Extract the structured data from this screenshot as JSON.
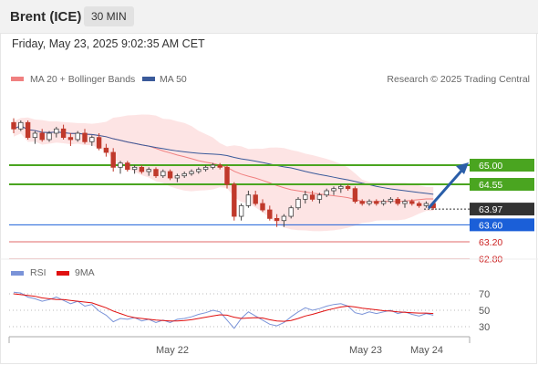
{
  "header": {
    "instrument": "Brent (ICE)",
    "timeframe": "30 MIN",
    "datetime": "Friday, May 23, 2025 9:02:35 AM CET"
  },
  "legend": {
    "ma20": "MA 20 + Bollinger Bands",
    "ma50": "MA 50",
    "credit": "Research © 2025 Trading Central",
    "rsi": "RSI",
    "rsi_ma": "9MA"
  },
  "colors": {
    "ma20": "#f08080",
    "ma50": "#3a5a9a",
    "bollinger_fill": "#fde1e1",
    "resistance": "#4aa520",
    "support": "#1b5fd8",
    "current": "#333333",
    "lower_level": "#e06a6a",
    "arrow": "#2a5ea8",
    "rsi": "#7a93d8",
    "rsi_ma": "#e01010",
    "candle_up": "#ffffff",
    "candle_down": "#c0392b"
  },
  "chart_data": [
    {
      "type": "candlestick",
      "x_ticks": [
        "May 22",
        "May 23",
        "May 24"
      ],
      "y_range": [
        62.5,
        66.5
      ],
      "levels": [
        {
          "value": 65.0,
          "label": "65.00",
          "kind": "resistance"
        },
        {
          "value": 64.55,
          "label": "64.55",
          "kind": "resistance"
        },
        {
          "value": 63.97,
          "label": "63.97",
          "kind": "current"
        },
        {
          "value": 63.6,
          "label": "63.60",
          "kind": "support"
        },
        {
          "value": 63.2,
          "label": "63.20",
          "kind": "lower"
        },
        {
          "value": 62.8,
          "label": "62.80",
          "kind": "lower"
        }
      ],
      "ohlc": [
        [
          66.0,
          66.1,
          65.75,
          65.85
        ],
        [
          65.85,
          66.05,
          65.8,
          66.0
        ],
        [
          66.0,
          66.05,
          65.6,
          65.65
        ],
        [
          65.65,
          65.8,
          65.5,
          65.75
        ],
        [
          65.75,
          65.85,
          65.55,
          65.6
        ],
        [
          65.6,
          65.8,
          65.55,
          65.75
        ],
        [
          65.75,
          65.9,
          65.65,
          65.85
        ],
        [
          65.85,
          65.95,
          65.6,
          65.65
        ],
        [
          65.65,
          65.75,
          65.45,
          65.6
        ],
        [
          65.6,
          65.8,
          65.55,
          65.75
        ],
        [
          65.75,
          65.85,
          65.5,
          65.55
        ],
        [
          65.55,
          65.7,
          65.45,
          65.65
        ],
        [
          65.65,
          65.75,
          65.35,
          65.4
        ],
        [
          65.4,
          65.5,
          65.2,
          65.3
        ],
        [
          65.3,
          65.4,
          64.85,
          64.95
        ],
        [
          64.95,
          65.1,
          64.8,
          65.05
        ],
        [
          65.05,
          65.1,
          64.85,
          64.9
        ],
        [
          64.9,
          65.0,
          64.8,
          64.95
        ],
        [
          64.95,
          65.0,
          64.8,
          64.85
        ],
        [
          64.85,
          64.95,
          64.75,
          64.9
        ],
        [
          64.9,
          64.95,
          64.7,
          64.75
        ],
        [
          64.75,
          64.9,
          64.7,
          64.85
        ],
        [
          64.85,
          64.9,
          64.65,
          64.7
        ],
        [
          64.7,
          64.8,
          64.6,
          64.75
        ],
        [
          64.75,
          64.85,
          64.7,
          64.8
        ],
        [
          64.8,
          64.9,
          64.75,
          64.85
        ],
        [
          64.85,
          64.95,
          64.8,
          64.9
        ],
        [
          64.9,
          65.0,
          64.85,
          64.95
        ],
        [
          64.95,
          65.05,
          64.9,
          65.0
        ],
        [
          65.0,
          65.05,
          64.9,
          64.95
        ],
        [
          64.95,
          65.0,
          64.45,
          64.55
        ],
        [
          64.55,
          64.6,
          63.7,
          63.8
        ],
        [
          63.8,
          64.1,
          63.7,
          64.05
        ],
        [
          64.05,
          64.4,
          64.0,
          64.3
        ],
        [
          64.3,
          64.4,
          64.05,
          64.1
        ],
        [
          64.1,
          64.2,
          63.9,
          63.95
        ],
        [
          63.95,
          64.05,
          63.7,
          63.75
        ],
        [
          63.75,
          63.85,
          63.55,
          63.7
        ],
        [
          63.7,
          63.85,
          63.55,
          63.8
        ],
        [
          63.8,
          64.05,
          63.75,
          64.0
        ],
        [
          64.0,
          64.25,
          63.95,
          64.2
        ],
        [
          64.2,
          64.4,
          64.1,
          64.3
        ],
        [
          64.3,
          64.4,
          64.15,
          64.2
        ],
        [
          64.2,
          64.35,
          64.1,
          64.3
        ],
        [
          64.3,
          64.45,
          64.25,
          64.4
        ],
        [
          64.4,
          64.5,
          64.3,
          64.45
        ],
        [
          64.45,
          64.55,
          64.35,
          64.5
        ],
        [
          64.5,
          64.55,
          64.4,
          64.45
        ],
        [
          64.45,
          64.5,
          64.1,
          64.15
        ],
        [
          64.15,
          64.2,
          64.05,
          64.1
        ],
        [
          64.1,
          64.2,
          64.05,
          64.15
        ],
        [
          64.15,
          64.2,
          64.05,
          64.1
        ],
        [
          64.1,
          64.2,
          64.05,
          64.15
        ],
        [
          64.15,
          64.25,
          64.1,
          64.2
        ],
        [
          64.2,
          64.25,
          64.05,
          64.1
        ],
        [
          64.1,
          64.2,
          64.0,
          64.15
        ],
        [
          64.15,
          64.2,
          64.05,
          64.1
        ],
        [
          64.1,
          64.15,
          64.0,
          64.05
        ],
        [
          64.05,
          64.15,
          64.0,
          64.1
        ],
        [
          64.1,
          64.15,
          63.95,
          64.0
        ]
      ],
      "forecast": {
        "from": 63.97,
        "to": 65.0
      }
    },
    {
      "type": "line",
      "name": "RSI",
      "y_ticks": [
        70,
        50,
        30
      ],
      "y_range": [
        20,
        80
      ],
      "rsi": [
        72,
        71,
        66,
        64,
        61,
        63,
        66,
        62,
        58,
        61,
        55,
        57,
        49,
        44,
        36,
        40,
        39,
        41,
        37,
        39,
        35,
        38,
        35,
        39,
        40,
        42,
        45,
        47,
        50,
        48,
        38,
        28,
        40,
        48,
        43,
        38,
        33,
        31,
        35,
        42,
        48,
        53,
        50,
        52,
        55,
        57,
        58,
        55,
        47,
        45,
        48,
        46,
        48,
        50,
        46,
        48,
        45,
        43,
        46,
        44
      ],
      "rsi_ma": [
        70,
        69,
        68,
        67,
        65,
        64,
        63,
        63,
        62,
        61,
        60,
        59,
        56,
        53,
        49,
        46,
        43,
        41,
        40,
        39,
        38,
        37.5,
        37,
        37,
        37.5,
        38.5,
        40,
        41.5,
        43,
        44.5,
        44,
        41.5,
        40,
        40.5,
        41,
        40.5,
        38.5,
        37,
        36.5,
        37.5,
        40,
        43,
        45,
        47.5,
        50,
        52,
        54,
        55,
        54,
        52.5,
        51.5,
        50.5,
        49.5,
        49,
        48,
        47.5,
        47,
        46.5,
        46.5,
        46
      ]
    }
  ]
}
